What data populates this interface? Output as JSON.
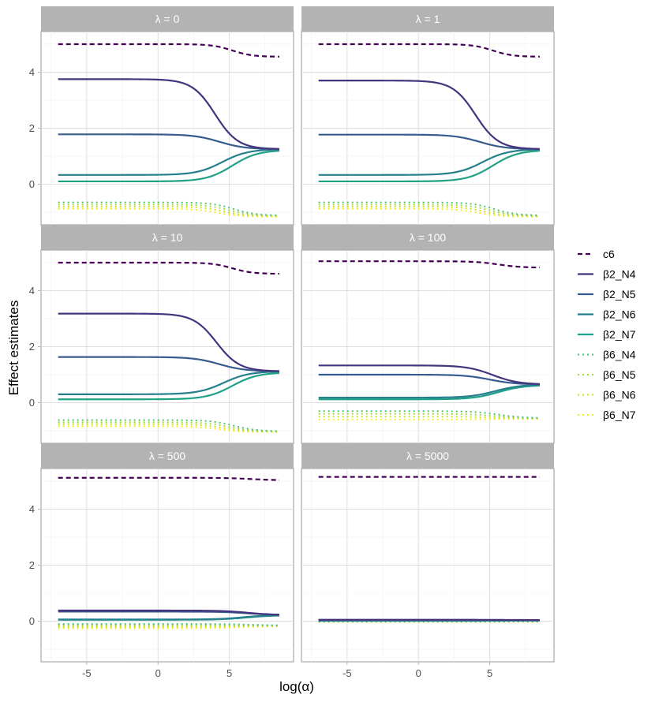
{
  "chart_data": {
    "type": "line",
    "facet_by": "λ",
    "xlabel": "log(α)",
    "ylabel": "Effect estimates",
    "xlim": [
      -8.2,
      9.5
    ],
    "ylim": [
      -1.45,
      5.45
    ],
    "x_ticks": [
      -5,
      0,
      5
    ],
    "x_tick_labels": [
      "-5",
      "0",
      "5"
    ],
    "y_ticks": [
      0,
      2,
      4
    ],
    "y_tick_labels": [
      "0",
      "2",
      "4"
    ],
    "x_range": [
      -7,
      8.5
    ],
    "legend_position": "right",
    "series_styles": [
      {
        "name": "c6",
        "color": "#440154",
        "dash": "dashed"
      },
      {
        "name": "β2_N4",
        "color": "#46337e",
        "dash": "solid"
      },
      {
        "name": "β2_N5",
        "color": "#365c8d",
        "dash": "solid"
      },
      {
        "name": "β2_N6",
        "color": "#277f8e",
        "dash": "solid"
      },
      {
        "name": "β2_N7",
        "color": "#1fa187",
        "dash": "solid"
      },
      {
        "name": "β6_N4",
        "color": "#4ac16d",
        "dash": "dotted"
      },
      {
        "name": "β6_N5",
        "color": "#9fda3a",
        "dash": "dotted"
      },
      {
        "name": "β6_N6",
        "color": "#cae11f",
        "dash": "dotted"
      },
      {
        "name": "β6_N7",
        "color": "#fde725",
        "dash": "dotted"
      }
    ],
    "panels": [
      {
        "lambda": "0",
        "label": "λ =  0",
        "series": [
          {
            "name": "c6",
            "start": 5.0,
            "end": 4.55,
            "mid": 5.2,
            "scale": 0.7
          },
          {
            "name": "β2_N4",
            "start": 3.75,
            "end": 1.25,
            "mid": 4.0,
            "scale": 0.8
          },
          {
            "name": "β2_N5",
            "start": 1.78,
            "end": 1.25,
            "mid": 4.3,
            "scale": 0.9
          },
          {
            "name": "β2_N6",
            "start": 0.33,
            "end": 1.25,
            "mid": 4.5,
            "scale": 0.9
          },
          {
            "name": "β2_N7",
            "start": 0.1,
            "end": 1.22,
            "mid": 5.2,
            "scale": 0.9
          },
          {
            "name": "β6_N4",
            "start": -0.65,
            "end": -1.12,
            "mid": 5.3,
            "scale": 0.8
          },
          {
            "name": "β6_N5",
            "start": -0.73,
            "end": -1.13,
            "mid": 5.0,
            "scale": 0.8
          },
          {
            "name": "β6_N6",
            "start": -0.8,
            "end": -1.15,
            "mid": 4.6,
            "scale": 0.8
          },
          {
            "name": "β6_N7",
            "start": -0.88,
            "end": -1.16,
            "mid": 4.2,
            "scale": 0.8
          }
        ]
      },
      {
        "lambda": "1",
        "label": "λ =  1",
        "series": [
          {
            "name": "c6",
            "start": 5.0,
            "end": 4.55,
            "mid": 5.2,
            "scale": 0.7
          },
          {
            "name": "β2_N4",
            "start": 3.7,
            "end": 1.25,
            "mid": 4.0,
            "scale": 0.8
          },
          {
            "name": "β2_N5",
            "start": 1.77,
            "end": 1.25,
            "mid": 4.3,
            "scale": 0.9
          },
          {
            "name": "β2_N6",
            "start": 0.33,
            "end": 1.25,
            "mid": 4.5,
            "scale": 0.9
          },
          {
            "name": "β2_N7",
            "start": 0.1,
            "end": 1.22,
            "mid": 5.2,
            "scale": 0.9
          },
          {
            "name": "β6_N4",
            "start": -0.65,
            "end": -1.12,
            "mid": 5.3,
            "scale": 0.8
          },
          {
            "name": "β6_N5",
            "start": -0.73,
            "end": -1.13,
            "mid": 5.0,
            "scale": 0.8
          },
          {
            "name": "β6_N6",
            "start": -0.8,
            "end": -1.15,
            "mid": 4.6,
            "scale": 0.8
          },
          {
            "name": "β6_N7",
            "start": -0.88,
            "end": -1.16,
            "mid": 4.2,
            "scale": 0.8
          }
        ]
      },
      {
        "lambda": "10",
        "label": "λ =  10",
        "series": [
          {
            "name": "c6",
            "start": 5.0,
            "end": 4.6,
            "mid": 5.2,
            "scale": 0.7
          },
          {
            "name": "β2_N4",
            "start": 3.18,
            "end": 1.12,
            "mid": 4.1,
            "scale": 0.8
          },
          {
            "name": "β2_N5",
            "start": 1.63,
            "end": 1.12,
            "mid": 4.3,
            "scale": 0.9
          },
          {
            "name": "β2_N6",
            "start": 0.3,
            "end": 1.12,
            "mid": 4.6,
            "scale": 0.9
          },
          {
            "name": "β2_N7",
            "start": 0.12,
            "end": 1.08,
            "mid": 5.2,
            "scale": 0.9
          },
          {
            "name": "β6_N4",
            "start": -0.62,
            "end": -1.02,
            "mid": 5.3,
            "scale": 0.8
          },
          {
            "name": "β6_N5",
            "start": -0.7,
            "end": -1.03,
            "mid": 5.0,
            "scale": 0.8
          },
          {
            "name": "β6_N6",
            "start": -0.77,
            "end": -1.04,
            "mid": 4.6,
            "scale": 0.8
          },
          {
            "name": "β6_N7",
            "start": -0.84,
            "end": -1.05,
            "mid": 4.2,
            "scale": 0.8
          }
        ]
      },
      {
        "lambda": "100",
        "label": "λ =  100",
        "series": [
          {
            "name": "c6",
            "start": 5.05,
            "end": 4.82,
            "mid": 5.6,
            "scale": 0.8
          },
          {
            "name": "β2_N4",
            "start": 1.33,
            "end": 0.65,
            "mid": 5.2,
            "scale": 0.9
          },
          {
            "name": "β2_N5",
            "start": 1.0,
            "end": 0.65,
            "mid": 5.0,
            "scale": 0.9
          },
          {
            "name": "β2_N6",
            "start": 0.18,
            "end": 0.65,
            "mid": 5.4,
            "scale": 0.9
          },
          {
            "name": "β2_N7",
            "start": 0.12,
            "end": 0.63,
            "mid": 5.6,
            "scale": 0.9
          },
          {
            "name": "β6_N4",
            "start": -0.3,
            "end": -0.55,
            "mid": 5.6,
            "scale": 0.9
          },
          {
            "name": "β6_N5",
            "start": -0.4,
            "end": -0.56,
            "mid": 5.4,
            "scale": 0.9
          },
          {
            "name": "β6_N6",
            "start": -0.5,
            "end": -0.57,
            "mid": 5.2,
            "scale": 0.9
          },
          {
            "name": "β6_N7",
            "start": -0.6,
            "end": -0.58,
            "mid": 5.0,
            "scale": 0.9
          }
        ]
      },
      {
        "lambda": "500",
        "label": "λ =  500",
        "series": [
          {
            "name": "c6",
            "start": 5.12,
            "end": 5.03,
            "mid": 6.5,
            "scale": 0.9
          },
          {
            "name": "β2_N4",
            "start": 0.38,
            "end": 0.22,
            "mid": 6.3,
            "scale": 0.9
          },
          {
            "name": "β2_N5",
            "start": 0.34,
            "end": 0.22,
            "mid": 6.3,
            "scale": 0.9
          },
          {
            "name": "β2_N6",
            "start": 0.06,
            "end": 0.22,
            "mid": 6.0,
            "scale": 0.9
          },
          {
            "name": "β2_N7",
            "start": 0.05,
            "end": 0.21,
            "mid": 6.2,
            "scale": 0.9
          },
          {
            "name": "β6_N4",
            "start": -0.1,
            "end": -0.15,
            "mid": 6.5,
            "scale": 0.9
          },
          {
            "name": "β6_N5",
            "start": -0.15,
            "end": -0.16,
            "mid": 6.3,
            "scale": 0.9
          },
          {
            "name": "β6_N6",
            "start": -0.2,
            "end": -0.17,
            "mid": 6.1,
            "scale": 0.9
          },
          {
            "name": "β6_N7",
            "start": -0.25,
            "end": -0.18,
            "mid": 5.9,
            "scale": 0.9
          }
        ]
      },
      {
        "lambda": "5000",
        "label": "λ =  5000",
        "series": [
          {
            "name": "c6",
            "start": 5.15,
            "end": 5.15,
            "mid": 6.0,
            "scale": 1.0
          },
          {
            "name": "β2_N4",
            "start": 0.05,
            "end": 0.04,
            "mid": 6.0,
            "scale": 1.0
          },
          {
            "name": "β2_N5",
            "start": 0.04,
            "end": 0.04,
            "mid": 6.0,
            "scale": 1.0
          },
          {
            "name": "β2_N6",
            "start": 0.02,
            "end": 0.03,
            "mid": 6.0,
            "scale": 1.0
          },
          {
            "name": "β2_N7",
            "start": 0.01,
            "end": 0.02,
            "mid": 6.0,
            "scale": 1.0
          },
          {
            "name": "β6_N4",
            "start": -0.01,
            "end": -0.01,
            "mid": 6.0,
            "scale": 1.0
          },
          {
            "name": "β6_N5",
            "start": -0.02,
            "end": -0.02,
            "mid": 6.0,
            "scale": 1.0
          },
          {
            "name": "β6_N6",
            "start": -0.02,
            "end": -0.02,
            "mid": 6.0,
            "scale": 1.0
          },
          {
            "name": "β6_N7",
            "start": -0.03,
            "end": -0.03,
            "mid": 6.0,
            "scale": 1.0
          }
        ]
      }
    ]
  }
}
